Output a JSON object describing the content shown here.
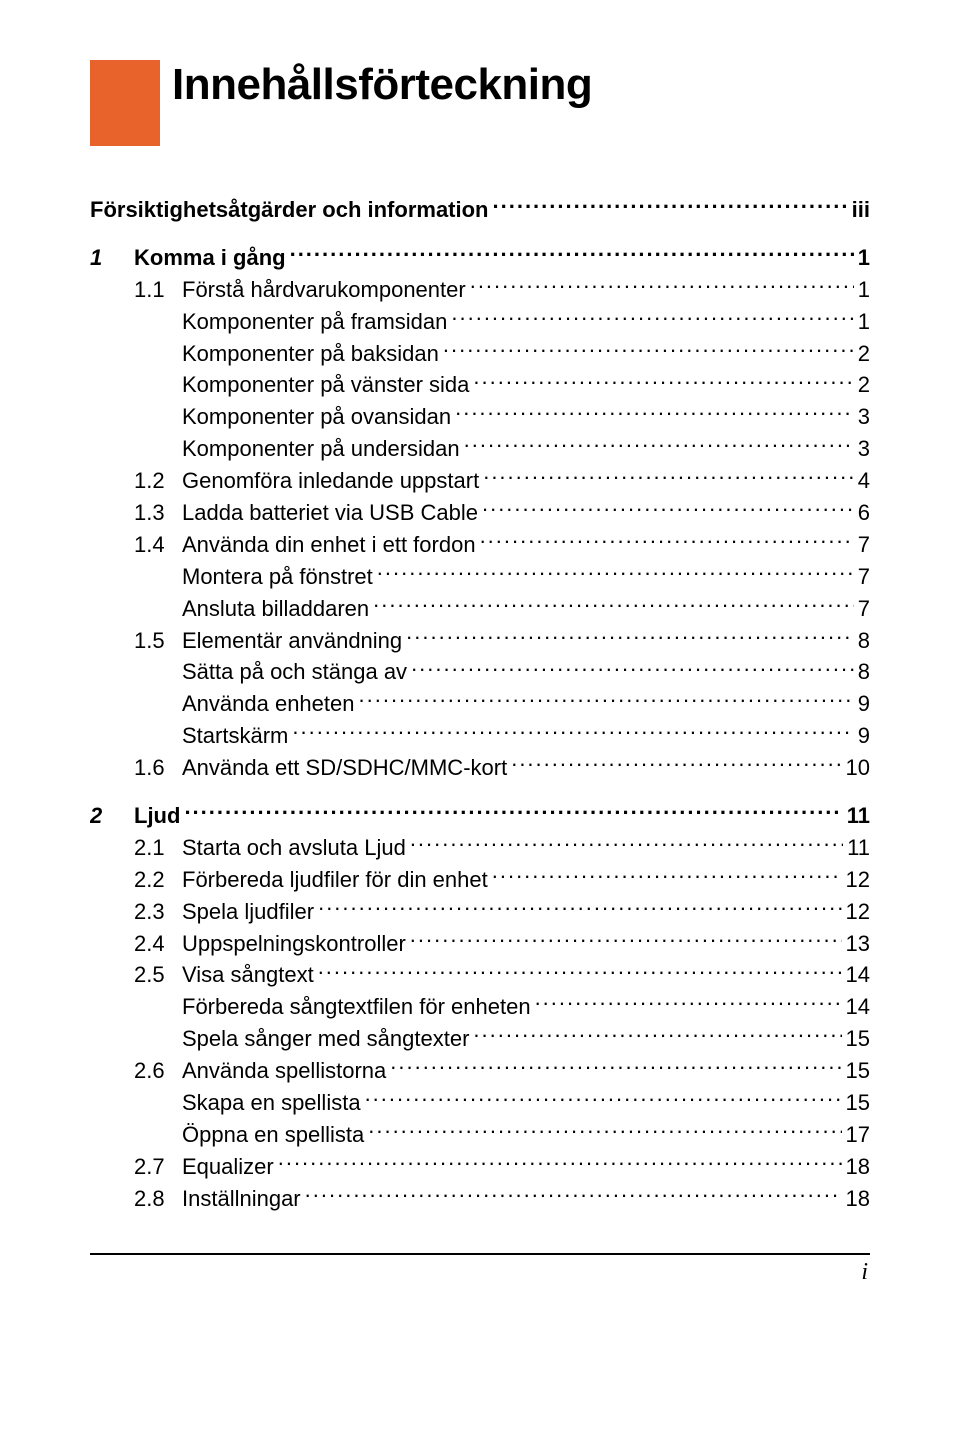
{
  "title": "Innehållsförteckning",
  "accent_color": "#e8622c",
  "page_number": "i",
  "toc": [
    {
      "level": "0-nonum",
      "num": "",
      "label": "Försiktighetsåtgärder och information",
      "page": "iii"
    },
    {
      "level": "0",
      "num": "1",
      "label": "Komma i gång",
      "page": "1"
    },
    {
      "level": "1",
      "num": "1.1",
      "label": "Förstå hårdvarukomponenter",
      "page": "1"
    },
    {
      "level": "2",
      "num": "",
      "label": "Komponenter på framsidan",
      "page": "1"
    },
    {
      "level": "2",
      "num": "",
      "label": "Komponenter på baksidan",
      "page": "2"
    },
    {
      "level": "2",
      "num": "",
      "label": "Komponenter på vänster sida",
      "page": "2"
    },
    {
      "level": "2",
      "num": "",
      "label": "Komponenter på ovansidan",
      "page": "3"
    },
    {
      "level": "2",
      "num": "",
      "label": "Komponenter på undersidan",
      "page": "3"
    },
    {
      "level": "1",
      "num": "1.2",
      "label": "Genomföra inledande uppstart",
      "page": "4"
    },
    {
      "level": "1",
      "num": "1.3",
      "label": "Ladda batteriet via USB Cable",
      "page": "6"
    },
    {
      "level": "1",
      "num": "1.4",
      "label": "Använda din enhet i ett fordon",
      "page": "7"
    },
    {
      "level": "2",
      "num": "",
      "label": "Montera på fönstret",
      "page": "7"
    },
    {
      "level": "2",
      "num": "",
      "label": "Ansluta billaddaren",
      "page": "7"
    },
    {
      "level": "1",
      "num": "1.5",
      "label": "Elementär användning",
      "page": "8"
    },
    {
      "level": "2",
      "num": "",
      "label": "Sätta på och stänga av",
      "page": "8"
    },
    {
      "level": "2",
      "num": "",
      "label": "Använda enheten",
      "page": "9"
    },
    {
      "level": "2",
      "num": "",
      "label": "Startskärm",
      "page": "9"
    },
    {
      "level": "1",
      "num": "1.6",
      "label": "Använda ett SD/SDHC/MMC-kort",
      "page": "10"
    },
    {
      "level": "0",
      "num": "2",
      "label": "Ljud",
      "page": "11"
    },
    {
      "level": "1",
      "num": "2.1",
      "label": "Starta och avsluta Ljud",
      "page": "11"
    },
    {
      "level": "1",
      "num": "2.2",
      "label": "Förbereda ljudfiler för din enhet",
      "page": "12"
    },
    {
      "level": "1",
      "num": "2.3",
      "label": "Spela ljudfiler",
      "page": "12"
    },
    {
      "level": "1",
      "num": "2.4",
      "label": "Uppspelningskontroller",
      "page": "13"
    },
    {
      "level": "1",
      "num": "2.5",
      "label": "Visa sångtext",
      "page": "14"
    },
    {
      "level": "2",
      "num": "",
      "label": "Förbereda sångtextfilen för enheten",
      "page": "14"
    },
    {
      "level": "2",
      "num": "",
      "label": "Spela sånger med sångtexter",
      "page": "15"
    },
    {
      "level": "1",
      "num": "2.6",
      "label": "Använda spellistorna",
      "page": "15"
    },
    {
      "level": "2",
      "num": "",
      "label": "Skapa en spellista",
      "page": "15"
    },
    {
      "level": "2",
      "num": "",
      "label": "Öppna en spellista",
      "page": "17"
    },
    {
      "level": "1",
      "num": "2.7",
      "label": "Equalizer",
      "page": "18"
    },
    {
      "level": "1",
      "num": "2.8",
      "label": "Inställningar",
      "page": "18"
    }
  ]
}
